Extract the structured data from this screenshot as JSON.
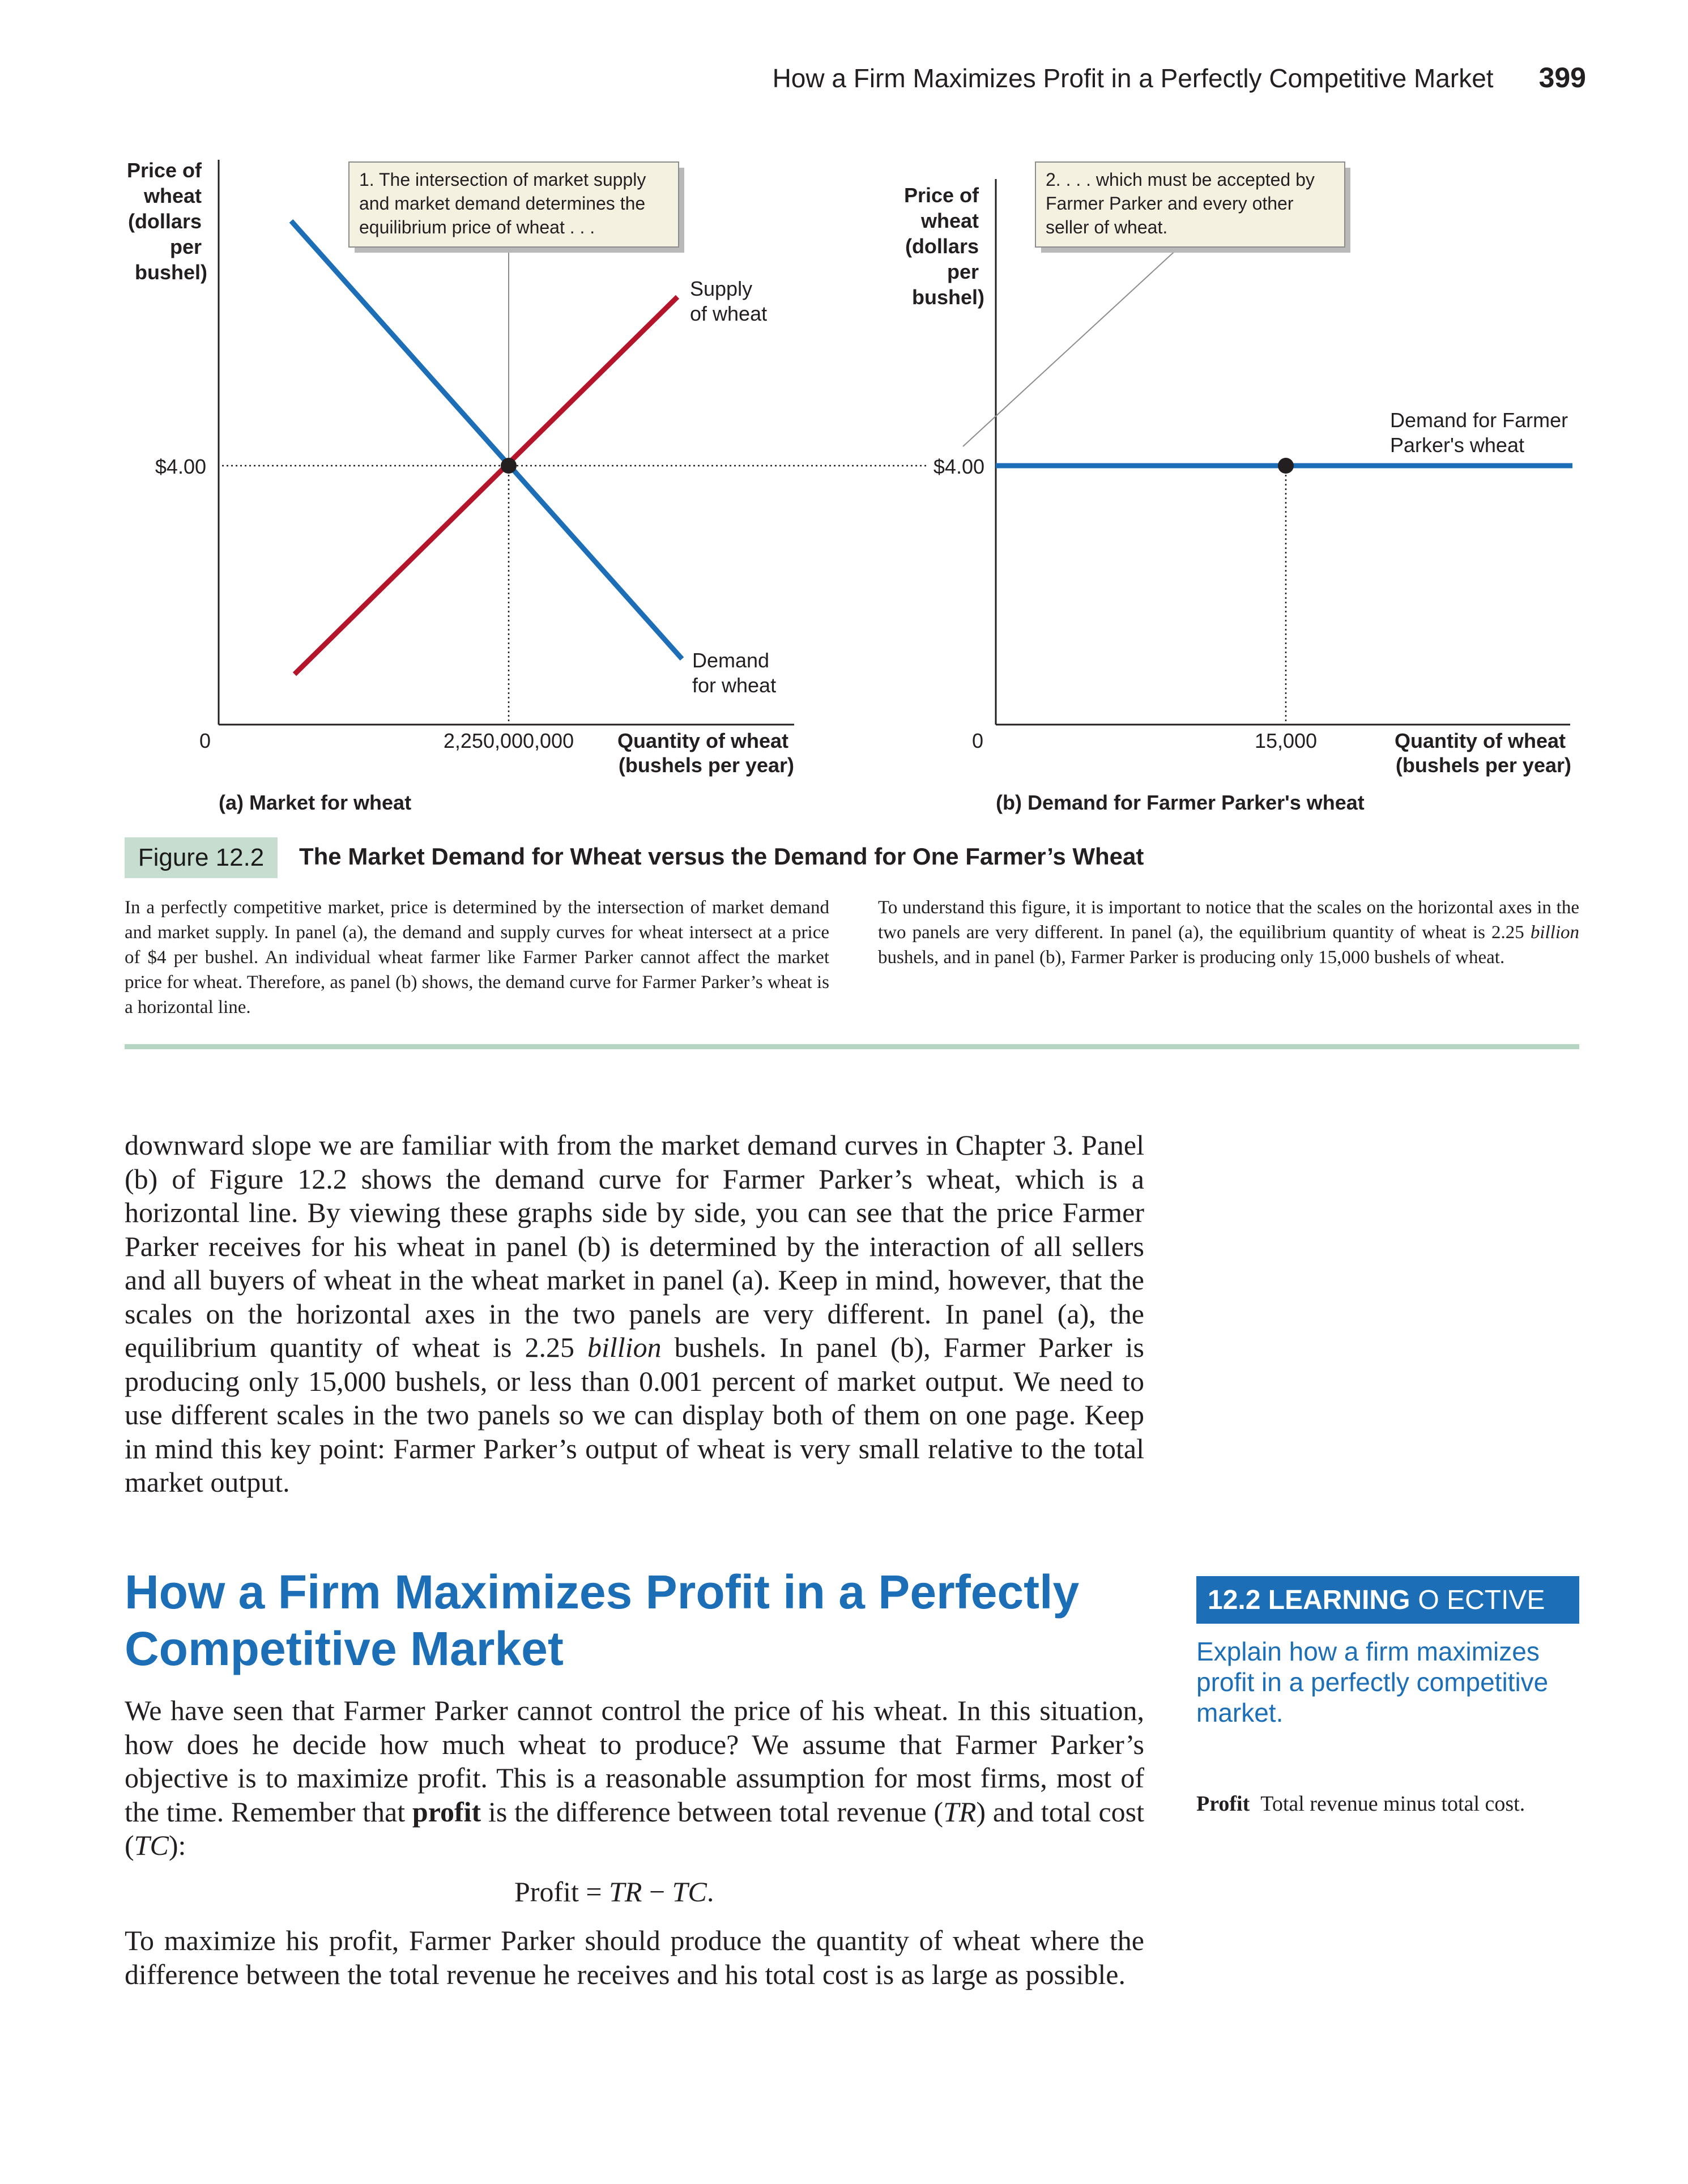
{
  "header": {
    "title": "How a Firm Maximizes Profit in a Perfectly Competitive Market",
    "page_number": "399"
  },
  "figure": {
    "label": "Figure 12.2",
    "title": "The Market Demand for Wheat versus the Demand for One Farmer’s Wheat",
    "colors": {
      "demand": "#1c6fb7",
      "supply": "#b5152b",
      "callout_fill": "#f4f1e1",
      "caption_box": "#c7ddd0"
    },
    "panel_a": {
      "y_axis_title": [
        "Price of",
        "wheat",
        "(dollars",
        "per",
        "bushel)"
      ],
      "x_axis_title": [
        "Quantity of wheat",
        "(bushels per year)"
      ],
      "origin": "0",
      "price_tick": "$4.00",
      "quantity_tick": "2,250,000,000",
      "supply_label": [
        "Supply",
        "of wheat"
      ],
      "demand_label": [
        "Demand",
        "for wheat"
      ],
      "callout": [
        "1. The intersection of market supply",
        "and market demand determines the",
        "equilibrium price of wheat . . ."
      ],
      "caption": "(a) Market for wheat"
    },
    "panel_b": {
      "y_axis_title": [
        "Price of",
        "wheat",
        "(dollars",
        "per",
        "bushel)"
      ],
      "x_axis_title": [
        "Quantity of wheat",
        "(bushels per year)"
      ],
      "origin": "0",
      "price_tick": "$4.00",
      "quantity_tick": "15,000",
      "demand_label": [
        "Demand for Farmer",
        "Parker's wheat"
      ],
      "callout": [
        "2. . . . which must be accepted by",
        "Farmer Parker and every other",
        "seller of wheat."
      ],
      "caption": "(b) Demand for Farmer Parker's wheat"
    },
    "description_left": "In a perfectly competitive market, price is determined by the intersection of market demand and market supply. In panel (a), the demand and supply curves for wheat intersect at a price of $4 per bushel. An individual wheat farmer like Farmer Parker cannot affect the market price for wheat. Therefore, as panel (b) shows, the demand curve for Farmer Parker’s wheat is a horizontal line.",
    "description_right": {
      "part1": "To understand this figure, it is important to notice that the scales on the horizontal axes in the two panels are very different. In panel (a), the equilibrium quantity of wheat is 2.25 ",
      "italic": "billion",
      "part2": " bushels, and in panel (b), Farmer Parker is producing only 15,000 bushels of wheat."
    }
  },
  "chart_data": [
    {
      "type": "line",
      "title": "(a) Market for wheat",
      "xlabel": "Quantity of wheat (bushels per year)",
      "ylabel": "Price of wheat (dollars per bushel)",
      "equilibrium": {
        "x": 2250000000,
        "y": 4.0
      },
      "series": [
        {
          "name": "Supply of wheat",
          "shape": "upward-sloping"
        },
        {
          "name": "Demand for wheat",
          "shape": "downward-sloping"
        }
      ]
    },
    {
      "type": "line",
      "title": "(b) Demand for Farmer Parker's wheat",
      "xlabel": "Quantity of wheat (bushels per year)",
      "ylabel": "Price of wheat (dollars per bushel)",
      "point": {
        "x": 15000,
        "y": 4.0
      },
      "series": [
        {
          "name": "Demand for Farmer Parker's wheat",
          "shape": "horizontal",
          "y": 4.0
        }
      ]
    }
  ],
  "body": {
    "paragraph_1": {
      "part1": "downward slope we are familiar with from the market demand curves in Chapter 3. Panel (b) of Figure 12.2 shows the demand curve for Farmer Parker’s wheat, which is a horizontal line. By viewing these graphs side by side, you can see that the price Farmer Parker receives for his wheat in panel (b) is determined by the interaction of all sellers and all buyers of wheat in the wheat market in panel (a). Keep in mind, however, that the scales on the horizontal axes in the two panels are very different. In panel (a), the equilibrium quantity of wheat is 2.25 ",
      "italic": "billion",
      "part2": " bushels. In panel (b), Farmer Parker is producing only 15,000 bushels, or less than 0.001 percent of market output. We need to use different scales in the two panels so we can display both of them on one page. Keep in mind this key point: Farmer Parker’s output of wheat is very small relative to the total market output."
    },
    "section_heading": "How a Firm Maximizes Profit in a Perfectly Competitive Market",
    "paragraph_2": {
      "part1": "We have seen that Farmer Parker cannot control the price of his wheat. In this situation, how does he decide how much wheat to produce? We assume that Farmer Parker’s objective is to maximize profit. This is a reasonable assumption for most firms, most of the time. Remember that ",
      "bold": "profit",
      "part2": " is the difference between total revenue (",
      "tr": "TR",
      "part3": ") and total cost (",
      "tc": "TC",
      "part4": "):"
    },
    "formula": {
      "lhs": "Profit",
      "eq": "=",
      "tr": "TR",
      "minus": "−",
      "tc": "TC",
      "end": "."
    },
    "paragraph_3": "To maximize his profit, Farmer Parker should produce the quantity of wheat where the difference between the total revenue he receives and his total cost is as large as possible."
  },
  "sidebar": {
    "objective_number": "12.2 LEARNING",
    "objective_label": "O   ECTIVE",
    "objective_text": "Explain how a firm maximizes profit in a perfectly competitive market.",
    "definition_term": "Profit",
    "definition_text": "Total revenue minus total cost."
  }
}
